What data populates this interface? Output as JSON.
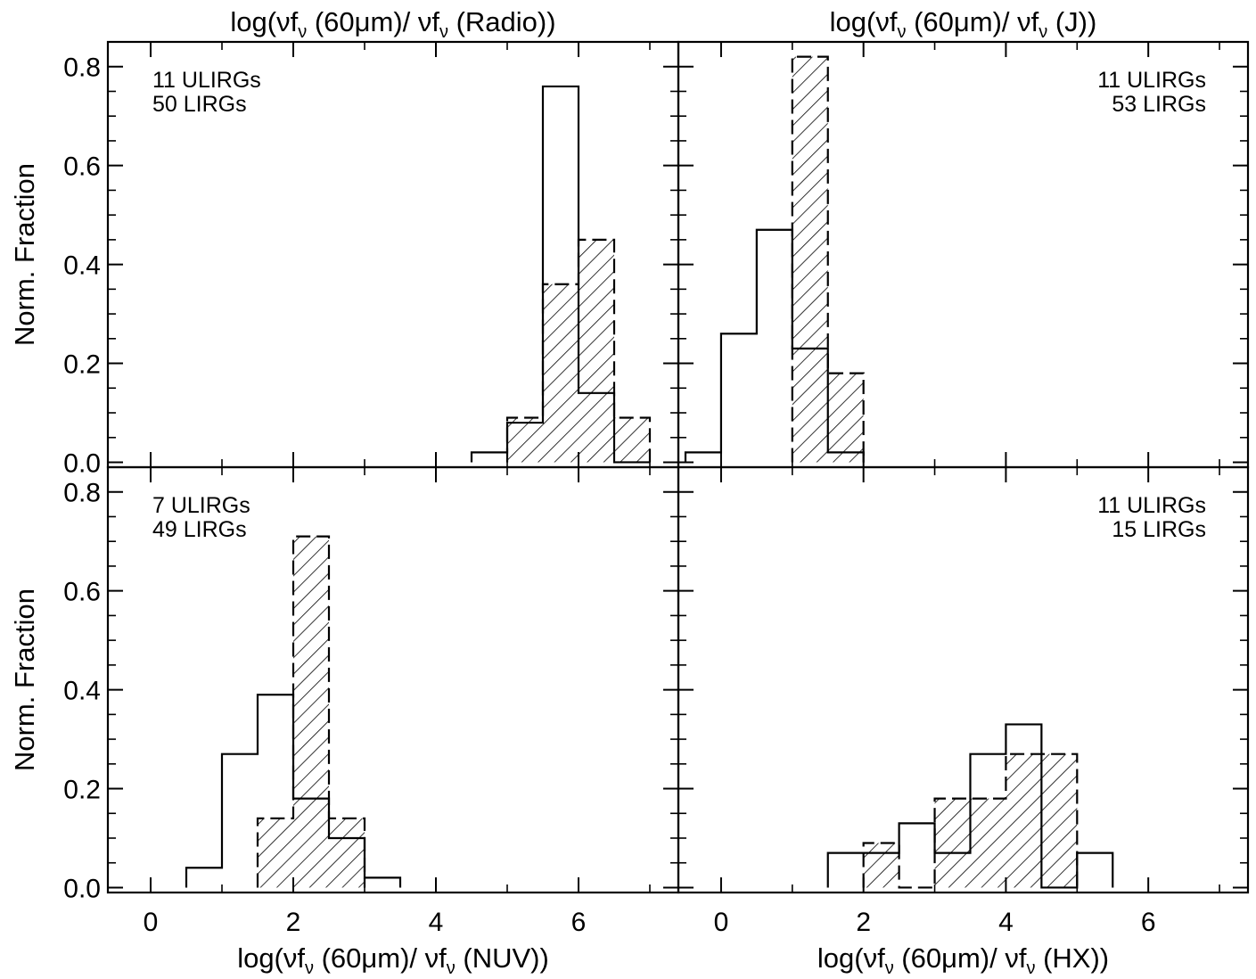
{
  "chart_data": [
    {
      "type": "bar",
      "panel": "top-left",
      "title": "log(νf_ν (60μm)/ νf_ν (Radio))",
      "title_parts": [
        "log(νf",
        "ν",
        " (60μm)/ νf",
        "ν",
        " (Radio))"
      ],
      "xlabel": "",
      "ylabel": "Norm. Fraction",
      "xlim": [
        -0.6,
        7.4
      ],
      "ylim": [
        -0.01,
        0.85
      ],
      "bin_width": 0.5,
      "annotation": [
        "11 ULIRGs",
        "50 LIRGs"
      ],
      "annotation_position": "top-left",
      "series": [
        {
          "style": "solid-open",
          "bins": [
            4.5,
            5.0,
            5.5,
            6.0,
            6.5
          ],
          "values": [
            0.02,
            0.08,
            0.76,
            0.14,
            0.0
          ]
        },
        {
          "style": "dashed-hatched",
          "bins": [
            5.0,
            5.5,
            6.0,
            6.5
          ],
          "values": [
            0.09,
            0.36,
            0.45,
            0.09
          ]
        }
      ]
    },
    {
      "type": "bar",
      "panel": "top-right",
      "title": "log(νf_ν (60μm)/ νf_ν (J))",
      "title_parts": [
        "log(νf",
        "ν",
        " (60μm)/ νf",
        "ν",
        " (J))"
      ],
      "xlabel": "",
      "ylabel": "",
      "xlim": [
        -0.6,
        7.4
      ],
      "ylim": [
        -0.01,
        0.85
      ],
      "bin_width": 0.5,
      "annotation": [
        "11 ULIRGs",
        "53 LIRGs"
      ],
      "annotation_position": "top-right",
      "series": [
        {
          "style": "solid-open",
          "bins": [
            -0.5,
            0.0,
            0.5,
            1.0,
            1.5
          ],
          "values": [
            0.02,
            0.26,
            0.47,
            0.23,
            0.02
          ]
        },
        {
          "style": "dashed-hatched",
          "bins": [
            1.0,
            1.5
          ],
          "values": [
            0.82,
            0.18
          ]
        }
      ]
    },
    {
      "type": "bar",
      "panel": "bottom-left",
      "title": "",
      "xlabel": "log(νf_ν (60μm)/ νf_ν (NUV))",
      "xlabel_parts": [
        "log(νf",
        "ν",
        " (60μm)/ νf",
        "ν",
        " (NUV))"
      ],
      "ylabel": "Norm. Fraction",
      "xlim": [
        -0.6,
        7.4
      ],
      "ylim": [
        -0.01,
        0.85
      ],
      "bin_width": 0.5,
      "annotation": [
        "7 ULIRGs",
        "49 LIRGs"
      ],
      "annotation_position": "top-left",
      "series": [
        {
          "style": "solid-open",
          "bins": [
            0.5,
            1.0,
            1.5,
            2.0,
            2.5,
            3.0
          ],
          "values": [
            0.04,
            0.27,
            0.39,
            0.18,
            0.1,
            0.02
          ]
        },
        {
          "style": "dashed-hatched",
          "bins": [
            1.5,
            2.0,
            2.5
          ],
          "values": [
            0.14,
            0.71,
            0.14
          ]
        }
      ]
    },
    {
      "type": "bar",
      "panel": "bottom-right",
      "title": "",
      "xlabel": "log(νf_ν (60μm)/ νf_ν (HX))",
      "xlabel_parts": [
        "log(νf",
        "ν",
        " (60μm)/ νf",
        "ν",
        " (HX))"
      ],
      "ylabel": "",
      "xlim": [
        -0.6,
        7.4
      ],
      "ylim": [
        -0.01,
        0.85
      ],
      "bin_width": 0.5,
      "annotation": [
        "11 ULIRGs",
        "15 LIRGs"
      ],
      "annotation_position": "top-right",
      "series": [
        {
          "style": "solid-open",
          "bins": [
            1.5,
            2.0,
            2.5,
            3.0,
            3.5,
            4.0,
            4.5,
            5.0
          ],
          "values": [
            0.07,
            0.07,
            0.13,
            0.07,
            0.27,
            0.33,
            0.0,
            0.07
          ]
        },
        {
          "style": "dashed-hatched",
          "bins": [
            2.0,
            2.5,
            3.0,
            3.5,
            4.0,
            4.5
          ],
          "values": [
            0.09,
            0.0,
            0.18,
            0.18,
            0.27,
            0.27
          ]
        }
      ]
    }
  ],
  "axes": {
    "x_ticks": [
      0,
      2,
      4,
      6
    ],
    "y_ticks": [
      "0.0",
      "0.2",
      "0.4",
      "0.6",
      "0.8"
    ],
    "y_tick_values": [
      0.0,
      0.2,
      0.4,
      0.6,
      0.8
    ]
  }
}
